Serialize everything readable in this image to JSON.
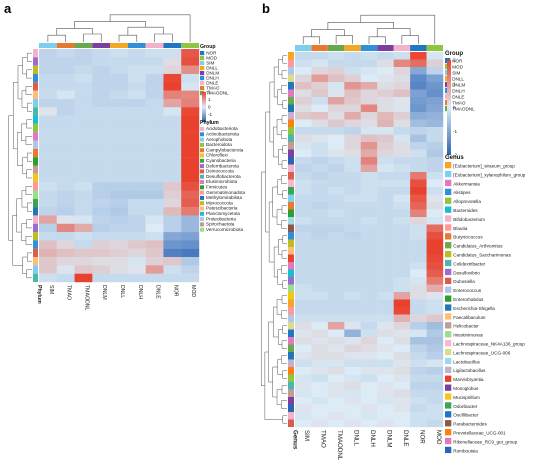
{
  "colors": {
    "NOR": "#1f77c4",
    "MOD": "#8ec63f",
    "SIM": "#7bd0ee",
    "DNLL": "#f5a623",
    "DNLM": "#7b3fa0",
    "DNLH": "#2f8fd8",
    "DNLE": "#f3b2c9",
    "TMAO": "#e8792f",
    "TMAODNL": "#6aa84f",
    "scale_low": "#2b63b5",
    "scale_mid": "#dcebf5",
    "scale_high": "#e8412d"
  },
  "chart_data": [
    {
      "panel": "a",
      "type": "heatmap",
      "title": "",
      "columns": [
        "SIM",
        "TMAO",
        "TMAODNL",
        "DNLM",
        "DNLL",
        "DNLH",
        "DNLE",
        "NOR",
        "MOD"
      ],
      "column_groups": [
        "SIM",
        "TMAO",
        "TMAODNL",
        "DNLM",
        "DNLL",
        "DNLH",
        "DNLE",
        "NOR",
        "MOD"
      ],
      "row_annotation_label": "Phylum",
      "rows": 28,
      "row_phylum_order": [
        "Actinobacteriota",
        "Proteobacteria",
        "Cyanobacteria",
        "Patescibacteria",
        "Deferribacterota",
        "Firmicutes",
        "Desulfobacterota",
        "Chloroflexi",
        "Gemmatimonadota",
        "Bacteroidota",
        "Elusimicrobiota",
        "Acidobacteriota",
        "Verrucomicrobiota",
        "Campylobacterota",
        "Aerophobota",
        "Spirochaetota",
        "Planctomycetota",
        "Methylomirabilota",
        "Deinococcota",
        "Myxococcota",
        "Cyanobacteria",
        "Desulfobacterota",
        "Campylobacterota",
        "Firmicutes",
        "Patescibacteria",
        "Proteobacteria",
        "Acidobacteriota",
        "Bacteroidota"
      ],
      "values": [
        [
          -0.4,
          -0.3,
          -0.4,
          -0.3,
          -0.2,
          -0.3,
          -0.2,
          -0.2,
          2.1
        ],
        [
          -0.4,
          -0.4,
          -0.4,
          -0.3,
          -0.3,
          -0.3,
          -0.3,
          0.2,
          2.2
        ],
        [
          -0.4,
          -0.4,
          -0.3,
          -0.4,
          -0.3,
          -0.2,
          -0.2,
          0.3,
          1.3
        ],
        [
          -0.3,
          -0.3,
          -0.2,
          -0.4,
          -0.4,
          -0.2,
          -0.4,
          2.3,
          -0.2
        ],
        [
          -0.3,
          -0.3,
          -0.3,
          -0.4,
          -0.4,
          -0.3,
          -0.4,
          2.4,
          -0.1
        ],
        [
          -0.3,
          -0.1,
          -0.3,
          -0.4,
          -0.3,
          -0.2,
          -0.4,
          1.5,
          1.4
        ],
        [
          -0.4,
          -0.4,
          -0.3,
          -0.4,
          -0.4,
          -0.4,
          -0.3,
          1.0,
          1.5
        ],
        [
          0.1,
          -0.4,
          -0.3,
          -0.3,
          -0.3,
          -0.3,
          -0.3,
          -0.1,
          2.3
        ],
        [
          -0.3,
          -0.3,
          -0.3,
          -0.3,
          -0.3,
          -0.3,
          -0.3,
          -0.3,
          2.4
        ],
        [
          -0.3,
          -0.3,
          -0.3,
          -0.3,
          -0.3,
          -0.3,
          -0.3,
          -0.3,
          2.4
        ],
        [
          -0.3,
          -0.3,
          -0.3,
          -0.3,
          -0.3,
          -0.3,
          -0.3,
          -0.3,
          2.4
        ],
        [
          -0.3,
          -0.3,
          -0.3,
          -0.3,
          -0.3,
          -0.3,
          -0.3,
          -0.3,
          2.4
        ],
        [
          -0.3,
          -0.3,
          -0.3,
          -0.3,
          -0.3,
          -0.3,
          -0.3,
          -0.3,
          2.4
        ],
        [
          -0.3,
          -0.3,
          -0.3,
          -0.3,
          -0.3,
          -0.3,
          -0.3,
          -0.3,
          2.4
        ],
        [
          -0.3,
          -0.3,
          -0.3,
          -0.3,
          -0.3,
          -0.3,
          -0.3,
          -0.3,
          2.4
        ],
        [
          -0.3,
          -0.3,
          -0.3,
          -0.3,
          -0.3,
          -0.3,
          -0.3,
          -0.3,
          2.4
        ],
        [
          -0.2,
          -0.3,
          -0.2,
          -0.5,
          -0.5,
          -0.5,
          -0.5,
          0.5,
          2.2
        ],
        [
          -0.3,
          -0.4,
          -0.3,
          -0.5,
          -0.6,
          -0.6,
          -0.6,
          0.4,
          1.9
        ],
        [
          -0.3,
          -0.4,
          -0.3,
          -0.4,
          -0.5,
          -0.3,
          -0.3,
          0.3,
          2.0
        ],
        [
          -0.4,
          -0.5,
          -0.3,
          -0.5,
          -0.6,
          -0.3,
          -0.3,
          0.7,
          1.6
        ],
        [
          1.0,
          0.1,
          -0.1,
          -0.4,
          -0.5,
          -0.4,
          -0.1,
          -0.5,
          -0.9
        ],
        [
          -0.5,
          1.4,
          0.9,
          -0.5,
          -0.4,
          -0.4,
          0.0,
          -0.5,
          -0.9
        ],
        [
          -0.3,
          -0.3,
          -0.2,
          -0.3,
          -0.3,
          -0.3,
          -0.2,
          -1.2,
          -1.3
        ],
        [
          0.6,
          0.3,
          -0.3,
          0.4,
          0.3,
          0.5,
          0.6,
          -1.5,
          -1.6
        ],
        [
          0.8,
          0.6,
          0.5,
          0.5,
          0.4,
          0.3,
          0.5,
          -1.9,
          -2.0
        ],
        [
          0.5,
          0.3,
          0.3,
          0.2,
          0.2,
          -0.1,
          0.4,
          0.5,
          -0.6
        ],
        [
          0.5,
          0.1,
          0.5,
          0.4,
          0.2,
          0.1,
          1.1,
          -0.2,
          -0.4
        ],
        [
          -0.2,
          -0.3,
          2.5,
          -0.3,
          -0.3,
          -0.3,
          -0.3,
          -0.3,
          -0.3
        ]
      ],
      "legend_group_title": "Group",
      "legend_groups": [
        "NOR",
        "MOD",
        "SIM",
        "DNLL",
        "DNLM",
        "DNLH",
        "DNLE",
        "TMAO",
        "TMAODNL"
      ],
      "legend_scale_ticks": [
        "2",
        "1",
        "0",
        "-1",
        "-2"
      ],
      "legend_phylum_title": "Phylum",
      "legend_phylum": [
        "Acidobacteriota",
        "Actinobacteriota",
        "Aerophobota",
        "Bacteroidota",
        "Campylobacterota",
        "Chloroflexi",
        "Cyanobacteria",
        "Deferribacterota",
        "Deinococcota",
        "Desulfobacterota",
        "Elusimicrobiota",
        "Firmicutes",
        "Gemmatimonadota",
        "Methylomirabilota",
        "Myxococcota",
        "Patescibacteria",
        "Planctomycetota",
        "Proteobacteria",
        "Spirochaetota",
        "Verrucomicrobiota"
      ],
      "phylum_colors": [
        "#f3b2c9",
        "#2f8fd8",
        "#7bd0ee",
        "#8ec63f",
        "#e8792f",
        "#f5c518",
        "#3aa655",
        "#9c6bd0",
        "#d6604d",
        "#4db6ac",
        "#e377c2",
        "#2ca02c",
        "#ff9896",
        "#1f77b4",
        "#bcbd22",
        "#ffbb78",
        "#17becf",
        "#aec7e8",
        "#c49c94",
        "#98df8a"
      ]
    },
    {
      "panel": "b",
      "type": "heatmap",
      "title": "",
      "columns": [
        "SIM",
        "TMAO",
        "TMAODNL",
        "DNLL",
        "DNLH",
        "DNLM",
        "DNLE",
        "NOR",
        "MOD"
      ],
      "column_groups": [
        "SIM",
        "TMAO",
        "TMAODNL",
        "DNLL",
        "DNLH",
        "DNLM",
        "DNLE",
        "NOR",
        "MOD"
      ],
      "row_annotation_label": "Genus",
      "rows": 50,
      "values": [
        [
          -0.3,
          -0.3,
          -0.2,
          -0.3,
          -0.2,
          -0.3,
          -0.2,
          2.3,
          -0.1
        ],
        [
          -0.2,
          -0.1,
          -0.3,
          -0.3,
          -0.3,
          0.2,
          1.4,
          1.8,
          0.4
        ],
        [
          0.0,
          0.3,
          0.4,
          -0.2,
          -0.1,
          0.0,
          0.3,
          -1.2,
          -0.4
        ],
        [
          0.3,
          1.1,
          0.6,
          0.4,
          0.0,
          0.1,
          0.2,
          -1.7,
          -1.3
        ],
        [
          0.6,
          0.4,
          -0.1,
          1.2,
          0.9,
          0.2,
          0.3,
          -1.8,
          -1.5
        ],
        [
          0.2,
          0.5,
          0.1,
          0.6,
          0.3,
          0.4,
          0.6,
          -1.3,
          -1.6
        ],
        [
          0.4,
          -0.2,
          1.0,
          0.5,
          0.3,
          0.2,
          0.1,
          -1.4,
          -1.3
        ],
        [
          0.2,
          0.0,
          0.3,
          0.3,
          1.4,
          0.2,
          0.1,
          -1.5,
          -1.2
        ],
        [
          0.5,
          0.6,
          0.2,
          0.9,
          0.3,
          0.7,
          0.4,
          -1.1,
          -1.0
        ],
        [
          0.0,
          0.2,
          0.5,
          0.3,
          0.2,
          0.8,
          0.2,
          -0.8,
          -0.9
        ],
        [
          -0.3,
          -0.3,
          -0.3,
          -0.4,
          -0.1,
          -0.1,
          -0.3,
          -0.4,
          -0.3
        ],
        [
          0.2,
          0.1,
          0.0,
          0.3,
          0.6,
          0.5,
          -0.1,
          -0.7,
          -0.3
        ],
        [
          -0.1,
          -0.2,
          0.0,
          0.3,
          1.2,
          0.4,
          0.2,
          -0.4,
          -0.5
        ],
        [
          0.0,
          -0.2,
          0.1,
          0.2,
          0.9,
          0.3,
          0.2,
          -0.2,
          -0.6
        ],
        [
          -0.3,
          -0.4,
          -0.3,
          -0.2,
          1.5,
          -0.2,
          -0.3,
          -0.3,
          -0.4
        ],
        [
          -0.4,
          -0.3,
          -0.4,
          -0.2,
          1.0,
          -0.1,
          -0.2,
          -0.3,
          -0.4
        ],
        [
          -0.3,
          -0.4,
          -0.3,
          -0.3,
          -0.2,
          -0.3,
          -0.3,
          1.6,
          -0.2
        ],
        [
          -0.2,
          -0.3,
          -0.3,
          -0.3,
          -0.2,
          -0.2,
          -0.2,
          2.2,
          0.0
        ],
        [
          -0.2,
          -0.3,
          -0.2,
          -0.3,
          -0.2,
          -0.3,
          -0.3,
          2.4,
          -0.2
        ],
        [
          -0.3,
          -0.3,
          -0.3,
          -0.2,
          -0.2,
          -0.3,
          -0.1,
          2.1,
          0.1
        ],
        [
          -0.3,
          -0.4,
          -0.3,
          -0.3,
          -0.3,
          -0.3,
          -0.2,
          1.9,
          0.2
        ],
        [
          -0.3,
          -0.3,
          -0.2,
          -0.3,
          -0.3,
          -0.3,
          -0.3,
          1.5,
          0.0
        ],
        [
          -0.2,
          -0.3,
          -0.3,
          -0.3,
          -0.2,
          -0.3,
          -0.2,
          0.3,
          -0.1
        ],
        [
          -0.4,
          -0.4,
          -0.4,
          -0.3,
          -0.3,
          -0.3,
          -0.3,
          -0.2,
          1.8
        ],
        [
          -0.3,
          -0.4,
          -0.3,
          -0.4,
          -0.3,
          -0.3,
          -0.3,
          -0.2,
          2.2
        ],
        [
          -0.3,
          -0.3,
          -0.3,
          -0.3,
          -0.3,
          -0.3,
          -0.3,
          -0.3,
          2.4
        ],
        [
          -0.3,
          -0.3,
          -0.3,
          -0.3,
          -0.3,
          -0.3,
          -0.3,
          -0.3,
          2.4
        ],
        [
          -0.3,
          -0.3,
          -0.3,
          -0.3,
          -0.3,
          -0.3,
          -0.3,
          -0.3,
          2.3
        ],
        [
          -0.3,
          -0.3,
          -0.3,
          -0.3,
          -0.3,
          -0.3,
          -0.3,
          -0.2,
          2.2
        ],
        [
          -0.3,
          -0.3,
          -0.3,
          -0.3,
          -0.3,
          -0.3,
          -0.3,
          0.0,
          2.0
        ],
        [
          -0.3,
          -0.3,
          -0.3,
          -0.3,
          -0.3,
          -0.3,
          -0.2,
          -0.1,
          1.6
        ],
        [
          -0.2,
          -0.3,
          -0.3,
          -0.3,
          -0.3,
          -0.3,
          -0.2,
          0.2,
          0.9
        ],
        [
          -0.2,
          -0.2,
          -0.3,
          -0.2,
          -0.3,
          -0.2,
          1.0,
          0.2,
          0.1
        ],
        [
          -0.3,
          -0.3,
          -0.3,
          -0.3,
          -0.3,
          -0.3,
          2.4,
          -0.3,
          -0.2
        ],
        [
          -0.3,
          -0.3,
          -0.3,
          -0.3,
          -0.3,
          -0.3,
          2.3,
          -0.3,
          -0.2
        ],
        [
          -0.2,
          -0.2,
          -0.2,
          -0.2,
          -0.2,
          -0.2,
          0.8,
          0.3,
          0.5
        ],
        [
          0.2,
          0.0,
          1.0,
          0.1,
          -0.3,
          0.1,
          0.3,
          -0.5,
          -0.8
        ],
        [
          0.1,
          0.2,
          0.0,
          -1.0,
          -0.2,
          0.2,
          0.1,
          -0.1,
          -0.6
        ],
        [
          0.2,
          0.1,
          0.2,
          0.1,
          0.3,
          0.0,
          0.2,
          -0.7,
          -0.7
        ],
        [
          0.0,
          0.2,
          0.1,
          0.3,
          0.2,
          0.1,
          0.0,
          -0.4,
          -0.6
        ],
        [
          0.1,
          0.2,
          0.2,
          0.1,
          0.1,
          0.0,
          0.2,
          -0.3,
          -0.5
        ],
        [
          -0.2,
          -0.1,
          -0.1,
          -0.2,
          -0.2,
          -0.2,
          0.1,
          -0.2,
          -0.1
        ],
        [
          0.0,
          0.1,
          0.2,
          0.0,
          0.1,
          0.1,
          0.2,
          -0.4,
          -0.5
        ],
        [
          -0.1,
          -0.2,
          0.0,
          -0.1,
          -0.2,
          0.0,
          0.1,
          -0.3,
          -0.3
        ],
        [
          0.1,
          0.0,
          0.1,
          0.2,
          0.0,
          0.1,
          0.0,
          -0.4,
          -0.4
        ],
        [
          -0.1,
          0.0,
          0.1,
          -0.1,
          0.0,
          0.1,
          0.2,
          -0.3,
          -0.3
        ],
        [
          0.0,
          -0.1,
          0.0,
          0.1,
          0.0,
          -0.1,
          0.1,
          -0.2,
          -0.3
        ],
        [
          0.1,
          0.0,
          0.0,
          0.0,
          0.1,
          0.0,
          0.1,
          -0.3,
          -0.2
        ],
        [
          -0.1,
          0.0,
          0.1,
          0.0,
          -0.1,
          0.0,
          0.0,
          -0.2,
          -0.2
        ],
        [
          0.0,
          0.1,
          0.0,
          0.1,
          0.0,
          0.1,
          0.0,
          -0.2,
          -0.3
        ]
      ],
      "legend_group_title": "Group",
      "legend_groups": [
        "NOR",
        "MOD",
        "SIM",
        "DNLL",
        "DNLM",
        "DNLH",
        "DNLE",
        "TMAO",
        "TMAODNL"
      ],
      "legend_scale_ticks": [
        "2",
        "1",
        "0",
        "-1",
        "-2"
      ],
      "legend_genus_title": "Genus",
      "legend_genus": [
        "[Eubacterium]_siraeum_group",
        "[Eubacterium]_xylanophilum_group",
        "Akkermansia",
        "Alistipes",
        "Alloprevotella",
        "Bacteroides",
        "Bifidobacterium",
        "Blautia",
        "Butyricicoccus",
        "Candidatus_Arthromitus",
        "Candidatus_Saccharimonas",
        "Colidextribacter",
        "Desulfovibrio",
        "Dubosiella",
        "Enterococcus",
        "Enterorhabdus",
        "Escherichia-Shigella",
        "Faecalibaculum",
        "Helicobacter",
        "Intestinimonas",
        "Lachnospiraceae_NK4A136_group",
        "Lachnospiraceae_UCG-006",
        "Lactobacillus",
        "Ligilactobacillus",
        "Marvinbryantia",
        "Monoglobus",
        "Mucispirillum",
        "Odoribacter",
        "Oscillibacter",
        "Parabacteroides",
        "Prevotellaceae_UCG-001",
        "Rikenellaceae_RC9_gut_group",
        "Romboutsia"
      ],
      "genus_colors": [
        "#f5a623",
        "#7bd0ee",
        "#e377c2",
        "#2f8fd8",
        "#8ec63f",
        "#17becf",
        "#f3b2c9",
        "#ff9896",
        "#e8792f",
        "#6aa84f",
        "#bcbd22",
        "#4db6ac",
        "#9c6bd0",
        "#d6604d",
        "#aec7e8",
        "#2ca02c",
        "#1f77b4",
        "#ffbb78",
        "#c49c94",
        "#98df8a",
        "#f7b6d2",
        "#dbdb8d",
        "#9edae5",
        "#c5b0d5",
        "#e8412d",
        "#7b3fa0",
        "#f5c518",
        "#3aa655",
        "#1f77c4",
        "#8c564b",
        "#ff7f0e",
        "#e377c2",
        "#2b63b5"
      ]
    }
  ]
}
